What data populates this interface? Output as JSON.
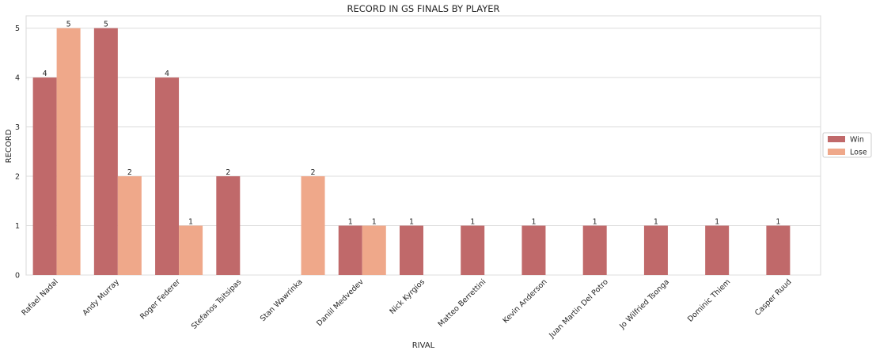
{
  "chart_data": {
    "type": "bar",
    "title": "RECORD IN GS FINALS BY PLAYER",
    "xlabel": "RIVAL",
    "ylabel": "RECORD",
    "ylim": [
      0,
      5.25
    ],
    "yticks": [
      0,
      1,
      2,
      3,
      4,
      5
    ],
    "grid": true,
    "legend_position": "right",
    "categories": [
      "Rafael Nadal",
      "Andy Murray",
      "Roger Federer",
      "Stefanos Tsitsipas",
      "Stan Wawrinka",
      "Daniil Medvedev",
      "Nick Kyrgios",
      "Matteo Berrettini",
      "Kevin Anderson",
      "Juan Martin Del Potro",
      "Jo Wilfried Tsonga",
      "Dominic Thiem",
      "Casper Ruud"
    ],
    "series": [
      {
        "name": "Win",
        "color": "#c0696a",
        "values": [
          4,
          5,
          4,
          2,
          0,
          1,
          1,
          1,
          1,
          1,
          1,
          1,
          1
        ]
      },
      {
        "name": "Lose",
        "color": "#efa88a",
        "values": [
          5,
          2,
          1,
          0,
          2,
          1,
          0,
          0,
          0,
          0,
          0,
          0,
          0
        ]
      }
    ]
  }
}
